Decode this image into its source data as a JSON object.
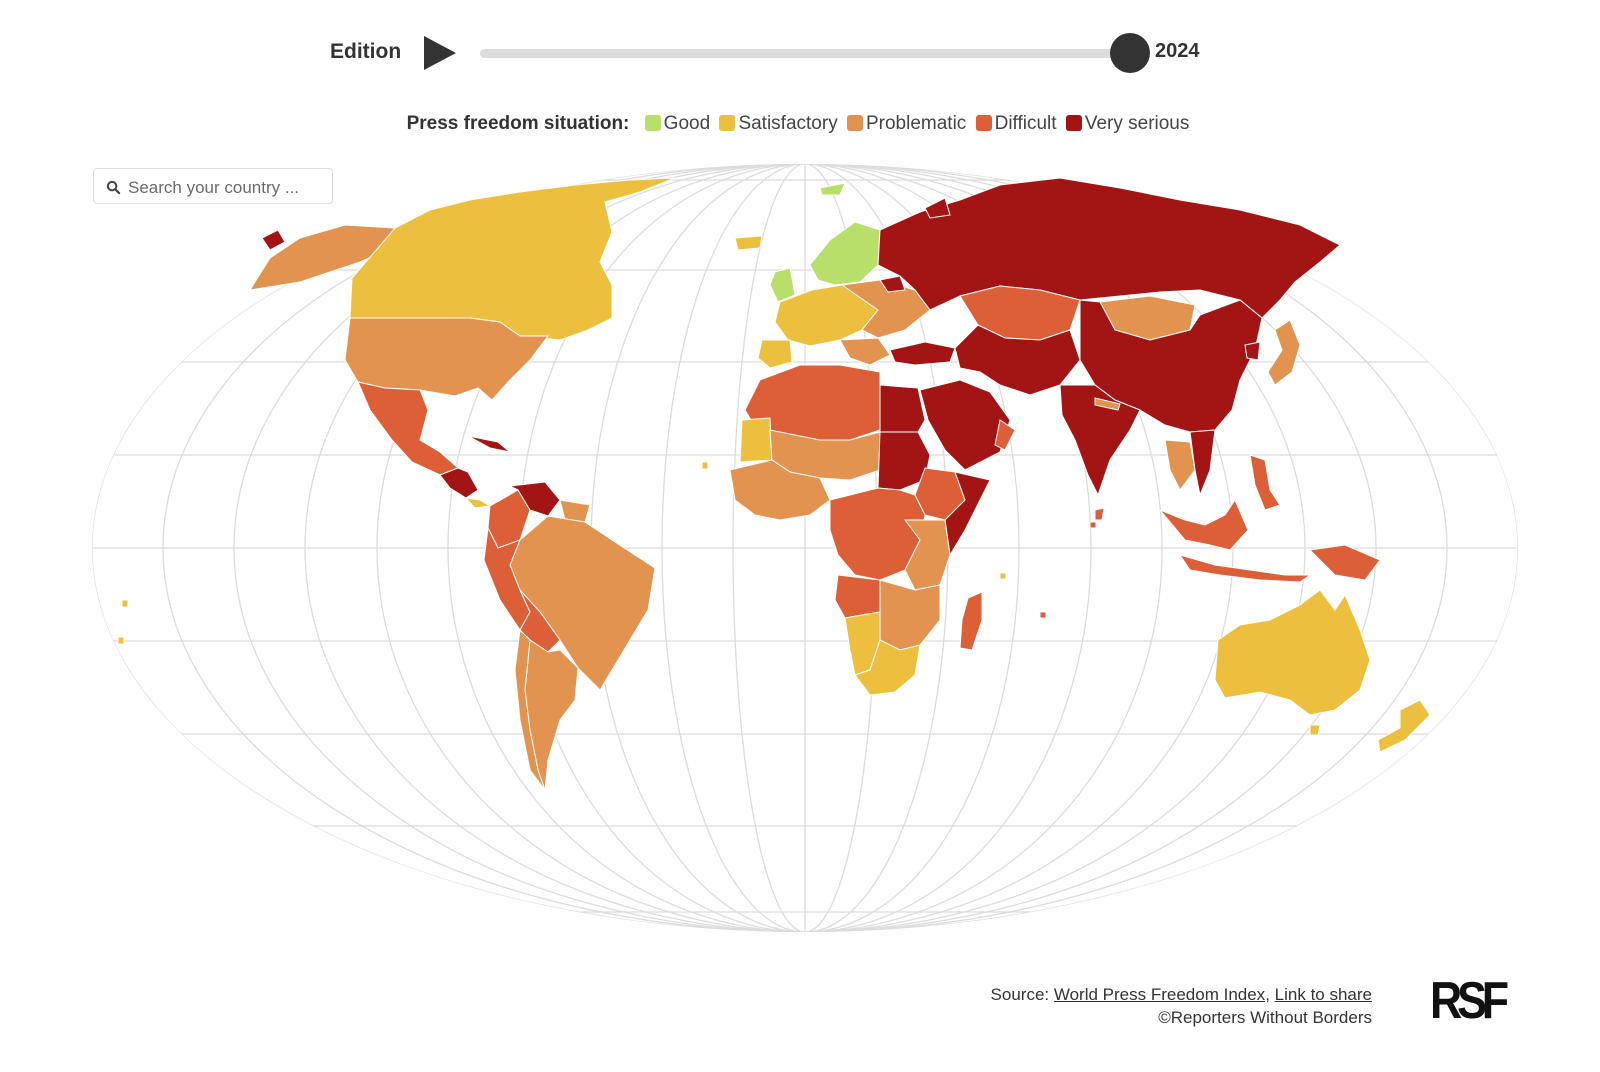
{
  "edition": {
    "label": "Edition",
    "year": "2024",
    "slider_position": 1.0
  },
  "legend": {
    "title": "Press freedom situation:",
    "items": [
      {
        "label": "Good",
        "color": "#b7df6a"
      },
      {
        "label": "Satisfactory",
        "color": "#ecc03e"
      },
      {
        "label": "Problematic",
        "color": "#e2934f"
      },
      {
        "label": "Difficult",
        "color": "#dd5f37"
      },
      {
        "label": "Very serious",
        "color": "#a31515"
      }
    ]
  },
  "search": {
    "placeholder": "Search your country ...",
    "icon": "search-icon"
  },
  "map": {
    "projection": "robinson",
    "graticule": true,
    "background": "#ffffff",
    "graticule_color": "#dcdcdc"
  },
  "footer": {
    "source_prefix": "Source:",
    "source_link": "World Press Freedom Index",
    "separator": ",",
    "share_link": "Link to share",
    "copyright": "©Reporters Without Borders",
    "logo_text": "RSF"
  }
}
